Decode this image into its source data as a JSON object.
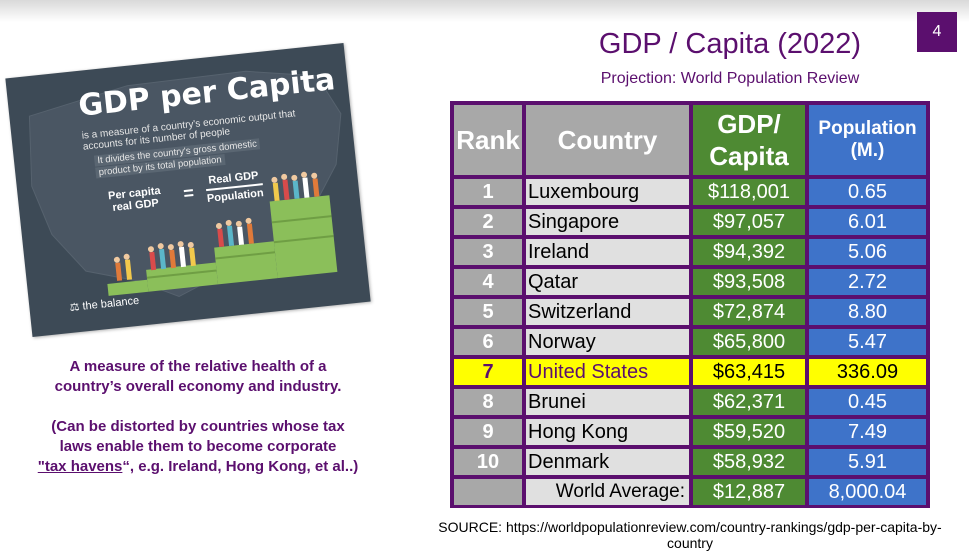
{
  "slide_number": "4",
  "title": "GDP / Capita (2022)",
  "subtitle": "Projection: World Population Review",
  "infographic": {
    "title": "GDP per Capita",
    "subtitle": "is a measure of a country's economic output that accounts for its number of people",
    "band_line1": "It divides the country's gross domestic",
    "band_line2": "product by its total population",
    "eq_left_line1": "Per capita",
    "eq_left_line2": "real GDP",
    "eq_sign": "=",
    "eq_numerator": "Real GDP",
    "eq_denominator": "Population",
    "logo": "the balance",
    "logo_icon": "balance-logo-icon"
  },
  "description": {
    "line1": "A measure of the relative health of a",
    "line2": "country’s  overall economy and industry.",
    "line3": "(Can be distorted by countries whose tax",
    "line4": "laws enable them to become corporate",
    "underlined": "\"tax havens",
    "line5_rest": "“, e.g. Ireland, Hong Kong, et al..)"
  },
  "table": {
    "headers": {
      "rank": "Rank",
      "country": "Country",
      "gdp_line1": "GDP/",
      "gdp_line2": "Capita",
      "pop_line1": "Population",
      "pop_line2": "(M.)"
    },
    "rows": [
      {
        "rank": "1",
        "country": "Luxembourg",
        "gdp": "$118,001",
        "pop": "0.65"
      },
      {
        "rank": "2",
        "country": "Singapore",
        "gdp": "$97,057",
        "pop": "6.01"
      },
      {
        "rank": "3",
        "country": "Ireland",
        "gdp": "$94,392",
        "pop": "5.06"
      },
      {
        "rank": "4",
        "country": "Qatar",
        "gdp": "$93,508",
        "pop": "2.72"
      },
      {
        "rank": "5",
        "country": "Switzerland",
        "gdp": "$72,874",
        "pop": "8.80"
      },
      {
        "rank": "6",
        "country": "Norway",
        "gdp": "$65,800",
        "pop": "5.47"
      },
      {
        "rank": "7",
        "country": "United States",
        "gdp": "$63,415",
        "pop": "336.09"
      },
      {
        "rank": "8",
        "country": "Brunei",
        "gdp": "$62,371",
        "pop": "0.45"
      },
      {
        "rank": "9",
        "country": "Hong Kong",
        "gdp": "$59,520",
        "pop": "7.49"
      },
      {
        "rank": "10",
        "country": "Denmark",
        "gdp": "$58,932",
        "pop": "5.91"
      }
    ],
    "highlight_row": "7",
    "footer": {
      "label": "World Average:",
      "gdp": "$12,887",
      "pop": "8,000.04"
    },
    "colors": {
      "border": "#5b0f6e",
      "rank": "#a8a8a8",
      "gdp": "#4e8a33",
      "pop": "#3e73c9",
      "highlight": "#ffff00"
    }
  },
  "source": "SOURCE: https://worldpopulationreview.com/country-rankings/gdp-per-capita-by-country"
}
